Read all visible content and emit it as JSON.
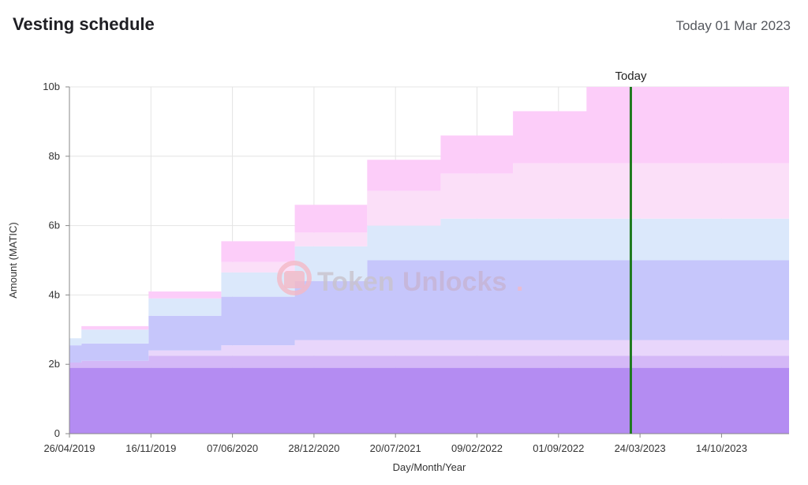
{
  "header": {
    "title": "Vesting schedule",
    "today_text": "Today 01 Mar 2023"
  },
  "watermark": {
    "part1": "Token",
    "part2": "Unlocks",
    "dot": "."
  },
  "chart_data": {
    "type": "area",
    "xlabel": "Day/Month/Year",
    "ylabel": "Amount (MATIC)",
    "ylim": [
      0,
      10000000000
    ],
    "yticks": [
      {
        "value": 0,
        "label": "0"
      },
      {
        "value": 2000000000,
        "label": "2b"
      },
      {
        "value": 4000000000,
        "label": "4b"
      },
      {
        "value": 6000000000,
        "label": "6b"
      },
      {
        "value": 8000000000,
        "label": "8b"
      },
      {
        "value": 10000000000,
        "label": "10b"
      }
    ],
    "xlim": [
      "2019-04-26",
      "2024-03-31"
    ],
    "xticks": [
      {
        "date": "2019-04-26",
        "label": "26/04/2019"
      },
      {
        "date": "2019-11-16",
        "label": "16/11/2019"
      },
      {
        "date": "2020-06-07",
        "label": "07/06/2020"
      },
      {
        "date": "2020-12-28",
        "label": "28/12/2020"
      },
      {
        "date": "2021-07-20",
        "label": "20/07/2021"
      },
      {
        "date": "2022-02-09",
        "label": "09/02/2022"
      },
      {
        "date": "2022-09-01",
        "label": "01/09/2022"
      },
      {
        "date": "2023-03-24",
        "label": "24/03/2023"
      },
      {
        "date": "2023-10-14",
        "label": "14/10/2023"
      }
    ],
    "grid": true,
    "today_marker": {
      "date": "2023-03-01",
      "label": "Today",
      "color": "#1f7a1f"
    },
    "x": [
      "2019-04-26",
      "2019-05-26",
      "2019-11-10",
      "2020-05-10",
      "2020-11-10",
      "2021-05-10",
      "2021-11-10",
      "2022-05-10",
      "2022-11-10",
      "2023-05-10",
      "2024-03-31"
    ],
    "series": [
      {
        "color": "#b48cf2",
        "values": [
          1900000000.0,
          1900000000.0,
          1900000000.0,
          1900000000.0,
          1900000000.0,
          1900000000.0,
          1900000000.0,
          1900000000.0,
          1900000000.0,
          1900000000.0,
          1900000000.0
        ]
      },
      {
        "color": "#d4b8f7",
        "values": [
          150000000.0,
          200000000.0,
          350000000.0,
          350000000.0,
          350000000.0,
          350000000.0,
          350000000.0,
          350000000.0,
          350000000.0,
          350000000.0,
          350000000.0
        ]
      },
      {
        "color": "#e8d6fb",
        "values": [
          0.0,
          0.0,
          150000000.0,
          300000000.0,
          450000000.0,
          450000000.0,
          450000000.0,
          450000000.0,
          450000000.0,
          450000000.0,
          450000000.0
        ]
      },
      {
        "color": "#c6c6fb",
        "values": [
          500000000.0,
          500000000.0,
          1000000000.0,
          1400000000.0,
          1700000000.0,
          2300000000.0,
          2300000000.0,
          2300000000.0,
          2300000000.0,
          2300000000.0,
          2300000000.0
        ]
      },
      {
        "color": "#dbe8fb",
        "values": [
          200000000.0,
          400000000.0,
          500000000.0,
          700000000.0,
          1000000000.0,
          1000000000.0,
          1200000000.0,
          1200000000.0,
          1200000000.0,
          1200000000.0,
          1200000000.0
        ]
      },
      {
        "color": "#fbdff8",
        "values": [
          0.0,
          0.0,
          0.0,
          300000000.0,
          400000000.0,
          1000000000.0,
          1300000000.0,
          1600000000.0,
          1600000000.0,
          1600000000.0,
          1600000000.0
        ]
      },
      {
        "color": "#fccdf9",
        "values": [
          0.0,
          100000000.0,
          200000000.0,
          600000000.0,
          800000000.0,
          900000000.0,
          1100000000.0,
          1500000000.0,
          2200000000.0,
          2200000000.0,
          2200000000.0
        ]
      }
    ]
  }
}
